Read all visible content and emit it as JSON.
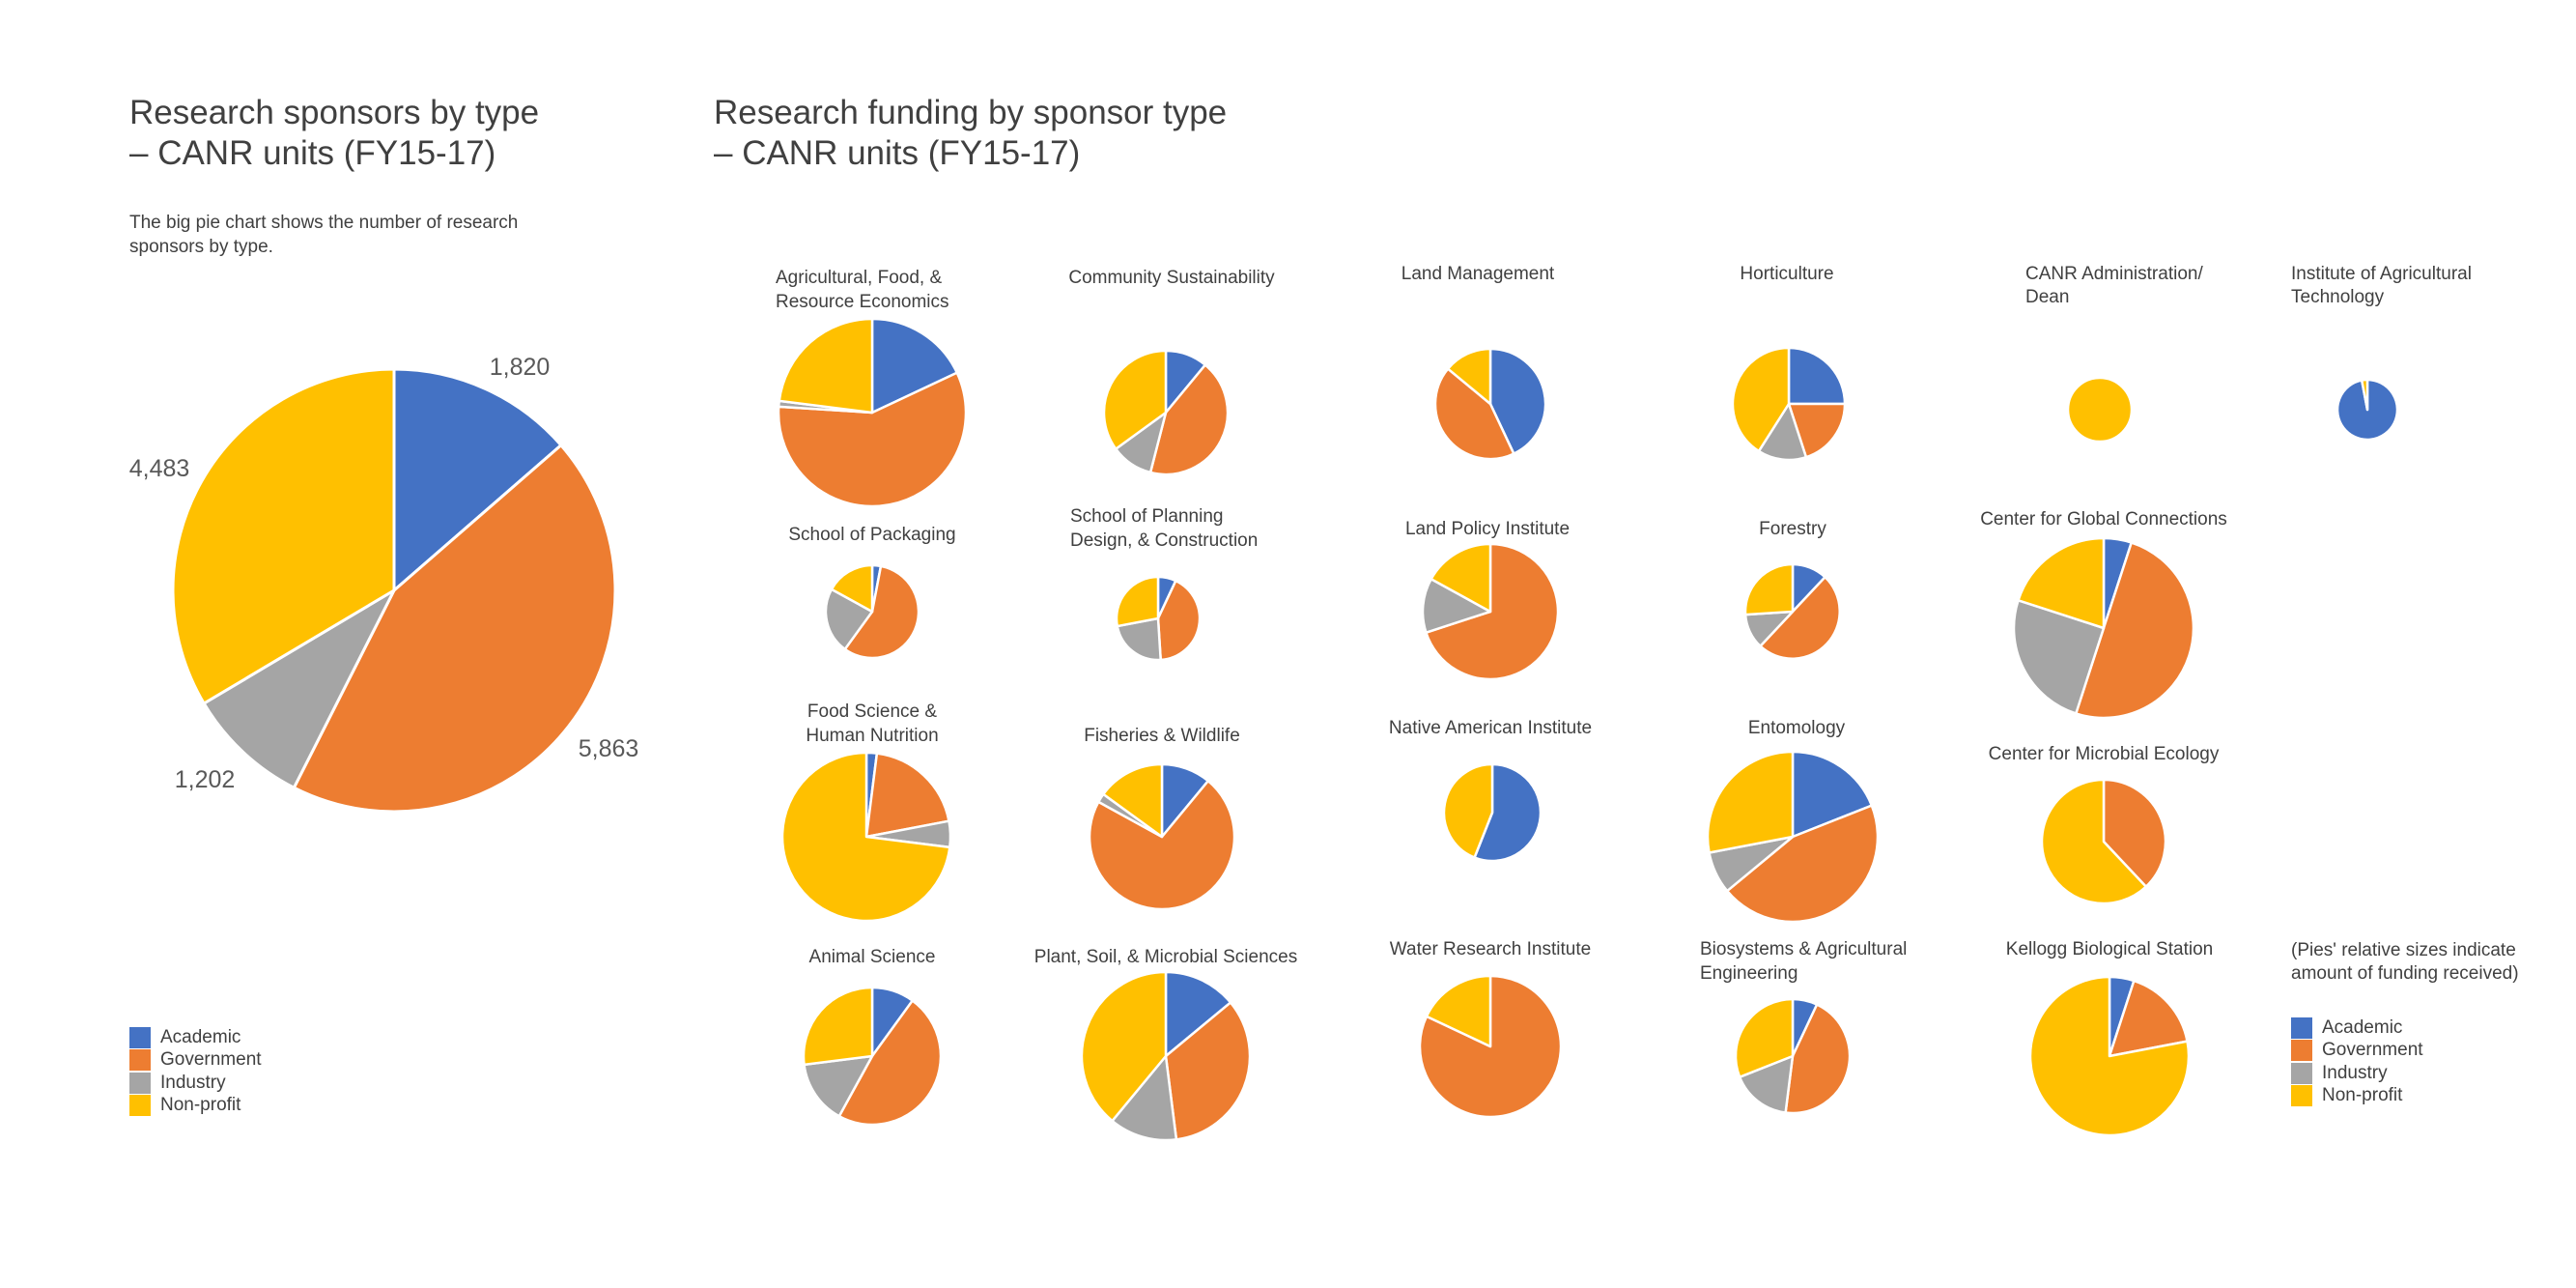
{
  "left_title": [
    "Research sponsors by type",
    "– CANR units (FY15-17)"
  ],
  "right_title": [
    "Research funding by sponsor type",
    "– CANR units (FY15-17)"
  ],
  "description": "The big pie chart shows the number of research sponsors by type.",
  "size_note": "(Pies' relative sizes indicate amount of funding received)",
  "colors": {
    "Academic": "#4472C4",
    "Government": "#ED7D31",
    "Industry": "#A5A5A5",
    "Non-profit": "#FFC000"
  },
  "legend_left": [
    "Academic",
    "Government",
    "Industry",
    "Non-profit"
  ],
  "legend_right": [
    "Academic",
    "Government",
    "Industry",
    "Non-profit"
  ],
  "chart_data": [
    {
      "type": "pie",
      "title": "Research sponsors by type – CANR units (FY15-17)",
      "categories": [
        "Academic",
        "Government",
        "Industry",
        "Non-profit"
      ],
      "values": [
        1820,
        5863,
        1202,
        4483
      ],
      "labels": [
        "1,820",
        "5,863",
        "1,202",
        "4,483"
      ]
    },
    {
      "type": "pie",
      "title": "Research funding by sponsor type – CANR units (FY15-17)",
      "categories": [
        "Academic",
        "Government",
        "Industry",
        "Non-profit"
      ],
      "units": [
        {
          "name": "Agricultural, Food, & Resource Economics",
          "values": [
            0.18,
            0.58,
            0.01,
            0.23
          ]
        },
        {
          "name": "Community Sustainability",
          "values": [
            0.11,
            0.43,
            0.11,
            0.35
          ]
        },
        {
          "name": "Land Management",
          "values": [
            0.43,
            0.43,
            0.0,
            0.14
          ]
        },
        {
          "name": "Horticulture",
          "values": [
            0.25,
            0.2,
            0.14,
            0.41
          ]
        },
        {
          "name": "CANR Administration/ Dean",
          "values": [
            0.0,
            0.0,
            0.0,
            1.0
          ]
        },
        {
          "name": "Institute of Agricultural Technology",
          "values": [
            0.97,
            0.0,
            0.0,
            0.03
          ]
        },
        {
          "name": "School of Packaging",
          "values": [
            0.03,
            0.57,
            0.23,
            0.17
          ]
        },
        {
          "name": "School of Planning Design, & Construction",
          "values": [
            0.07,
            0.42,
            0.23,
            0.28
          ]
        },
        {
          "name": "Land Policy Institute",
          "values": [
            0.0,
            0.7,
            0.13,
            0.17
          ]
        },
        {
          "name": "Forestry",
          "values": [
            0.12,
            0.5,
            0.12,
            0.26
          ]
        },
        {
          "name": "Center for Global Connections",
          "values": [
            0.05,
            0.5,
            0.25,
            0.2
          ]
        },
        {
          "name": "Food Science & Human Nutrition",
          "values": [
            0.02,
            0.2,
            0.05,
            0.73
          ]
        },
        {
          "name": "Fisheries & Wildlife",
          "values": [
            0.11,
            0.72,
            0.02,
            0.15
          ]
        },
        {
          "name": "Native American Institute",
          "values": [
            0.56,
            0.0,
            0.0,
            0.44
          ]
        },
        {
          "name": "Entomology",
          "values": [
            0.19,
            0.45,
            0.08,
            0.28
          ]
        },
        {
          "name": "Center for Microbial Ecology",
          "values": [
            0.0,
            0.38,
            0.0,
            0.62
          ]
        },
        {
          "name": "Animal Science",
          "values": [
            0.1,
            0.48,
            0.15,
            0.27
          ]
        },
        {
          "name": "Plant, Soil, & Microbial Sciences",
          "values": [
            0.14,
            0.34,
            0.13,
            0.39
          ]
        },
        {
          "name": "Water Research Institute",
          "values": [
            0.0,
            0.82,
            0.0,
            0.18
          ]
        },
        {
          "name": "Biosystems & Agricultural Engineering",
          "values": [
            0.07,
            0.45,
            0.17,
            0.31
          ]
        },
        {
          "name": "Kellogg Biological Station",
          "values": [
            0.05,
            0.17,
            0.0,
            0.78
          ]
        }
      ]
    }
  ]
}
